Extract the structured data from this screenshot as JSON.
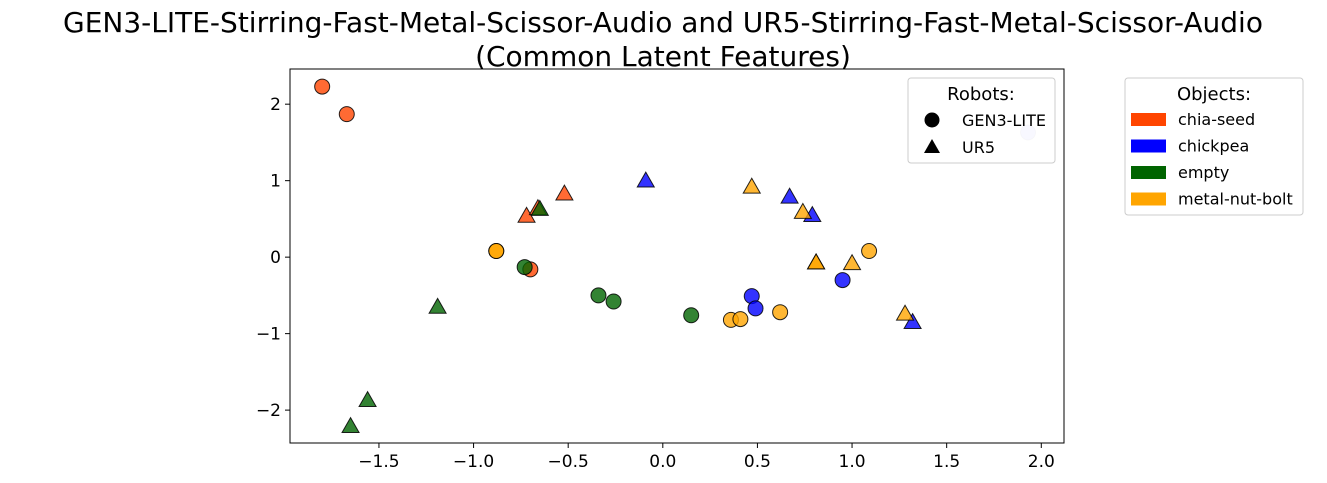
{
  "chart_data": {
    "type": "scatter",
    "title_lines": [
      "GEN3-LITE-Stirring-Fast-Metal-Scissor-Audio and UR5-Stirring-Fast-Metal-Scissor-Audio",
      "(Common Latent Features)"
    ],
    "xlabel": "",
    "ylabel": "",
    "xlim": [
      -1.97,
      2.12
    ],
    "ylim": [
      -2.43,
      2.46
    ],
    "x_ticks": [
      -1.5,
      -1.0,
      -0.5,
      0.0,
      0.5,
      1.0,
      1.5,
      2.0
    ],
    "x_tick_labels": [
      "−1.5",
      "−1.0",
      "−0.5",
      "0.0",
      "0.5",
      "1.0",
      "1.5",
      "2.0"
    ],
    "y_ticks": [
      2,
      1,
      0,
      -1,
      -2
    ],
    "y_tick_labels": [
      "2",
      "1",
      "0",
      "−1",
      "−2"
    ],
    "grid": false,
    "robot_legend": {
      "title": "Robots:",
      "placement": "top-right inside axes",
      "entries": [
        {
          "label": "GEN3-LITE",
          "marker": "circle"
        },
        {
          "label": "UR5",
          "marker": "triangle"
        }
      ]
    },
    "object_legend": {
      "title": "Objects:",
      "placement": "outside right",
      "entries": [
        {
          "label": "chia-seed",
          "color": "#ff4500"
        },
        {
          "label": "chickpea",
          "color": "#0000ff"
        },
        {
          "label": "empty",
          "color": "#006400"
        },
        {
          "label": "metal-nut-bolt",
          "color": "#ffa500"
        }
      ]
    },
    "points": [
      {
        "robot": "GEN3-LITE",
        "object": "chia-seed",
        "x": -1.8,
        "y": 2.23
      },
      {
        "robot": "GEN3-LITE",
        "object": "chia-seed",
        "x": -1.67,
        "y": 1.87
      },
      {
        "robot": "GEN3-LITE",
        "object": "chia-seed",
        "x": -0.7,
        "y": -0.16
      },
      {
        "robot": "GEN3-LITE",
        "object": "metal-nut-bolt",
        "x": -0.88,
        "y": 0.08
      },
      {
        "robot": "GEN3-LITE",
        "object": "metal-nut-bolt",
        "x": -0.88,
        "y": 0.08
      },
      {
        "robot": "GEN3-LITE",
        "object": "empty",
        "x": -0.73,
        "y": -0.13
      },
      {
        "robot": "GEN3-LITE",
        "object": "empty",
        "x": -0.34,
        "y": -0.5
      },
      {
        "robot": "GEN3-LITE",
        "object": "empty",
        "x": -0.26,
        "y": -0.58
      },
      {
        "robot": "GEN3-LITE",
        "object": "empty",
        "x": 0.15,
        "y": -0.76
      },
      {
        "robot": "GEN3-LITE",
        "object": "chickpea",
        "x": 0.47,
        "y": -0.51
      },
      {
        "robot": "GEN3-LITE",
        "object": "chickpea",
        "x": 0.49,
        "y": -0.67
      },
      {
        "robot": "GEN3-LITE",
        "object": "chickpea",
        "x": 0.95,
        "y": -0.3
      },
      {
        "robot": "GEN3-LITE",
        "object": "chickpea",
        "x": 1.93,
        "y": 1.63,
        "faded": true
      },
      {
        "robot": "GEN3-LITE",
        "object": "metal-nut-bolt",
        "x": 0.36,
        "y": -0.82
      },
      {
        "robot": "GEN3-LITE",
        "object": "metal-nut-bolt",
        "x": 0.41,
        "y": -0.81
      },
      {
        "robot": "GEN3-LITE",
        "object": "metal-nut-bolt",
        "x": 0.62,
        "y": -0.72
      },
      {
        "robot": "GEN3-LITE",
        "object": "metal-nut-bolt",
        "x": 1.09,
        "y": 0.08
      },
      {
        "robot": "UR5",
        "object": "chia-seed",
        "x": -0.72,
        "y": 0.54
      },
      {
        "robot": "UR5",
        "object": "chia-seed",
        "x": -0.66,
        "y": 0.64
      },
      {
        "robot": "UR5",
        "object": "chia-seed",
        "x": -0.52,
        "y": 0.83
      },
      {
        "robot": "UR5",
        "object": "empty",
        "x": -0.65,
        "y": 0.63
      },
      {
        "robot": "UR5",
        "object": "empty",
        "x": -1.19,
        "y": -0.65
      },
      {
        "robot": "UR5",
        "object": "empty",
        "x": -1.56,
        "y": -1.87
      },
      {
        "robot": "UR5",
        "object": "empty",
        "x": -1.65,
        "y": -2.21
      },
      {
        "robot": "UR5",
        "object": "chickpea",
        "x": -0.09,
        "y": 1.0
      },
      {
        "robot": "UR5",
        "object": "chickpea",
        "x": 0.67,
        "y": 0.79
      },
      {
        "robot": "UR5",
        "object": "chickpea",
        "x": 0.79,
        "y": 0.55
      },
      {
        "robot": "UR5",
        "object": "chickpea",
        "x": 1.32,
        "y": -0.85
      },
      {
        "robot": "UR5",
        "object": "metal-nut-bolt",
        "x": 0.47,
        "y": 0.92
      },
      {
        "robot": "UR5",
        "object": "metal-nut-bolt",
        "x": 0.74,
        "y": 0.59
      },
      {
        "robot": "UR5",
        "object": "metal-nut-bolt",
        "x": 0.81,
        "y": -0.07
      },
      {
        "robot": "UR5",
        "object": "metal-nut-bolt",
        "x": 0.81,
        "y": -0.07
      },
      {
        "robot": "UR5",
        "object": "metal-nut-bolt",
        "x": 1.0,
        "y": -0.08
      },
      {
        "robot": "UR5",
        "object": "metal-nut-bolt",
        "x": 1.28,
        "y": -0.74
      }
    ]
  }
}
